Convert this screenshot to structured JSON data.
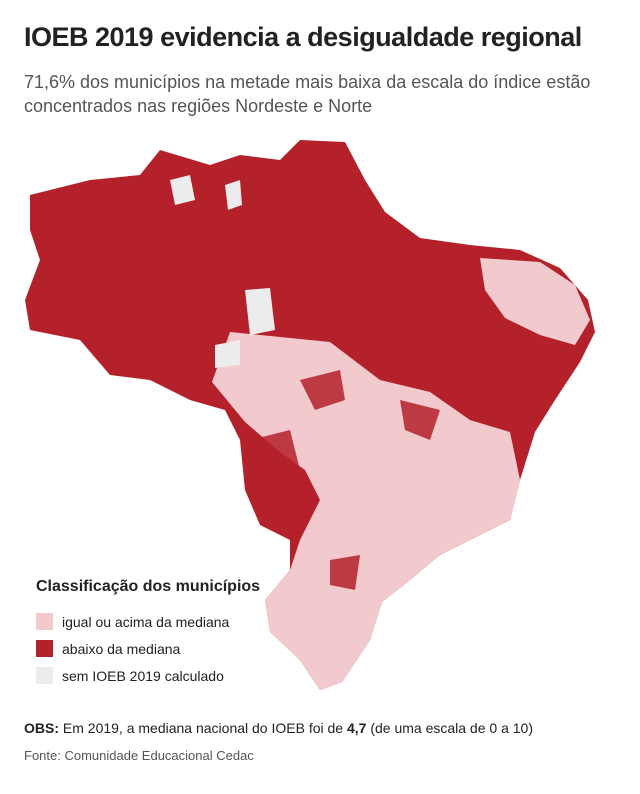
{
  "header": {
    "title": "IOEB 2019 evidencia a desigualdade regional",
    "subtitle": "71,6% dos municípios na metade mais baixa da escala do índice estão concentrados nas regiões Nordeste e Norte"
  },
  "legend": {
    "title": "Classificação dos municípios",
    "items": [
      {
        "label": "igual ou acima da mediana",
        "color": "#f2c9cc"
      },
      {
        "label": "abaixo da mediana",
        "color": "#b5212a"
      },
      {
        "label": "sem IOEB 2019 calculado",
        "color": "#ececec"
      }
    ]
  },
  "note": {
    "prefix": "OBS:",
    "text": "Em 2019, a mediana nacional do IOEB foi de",
    "value": "4,7",
    "suffix": "(de uma escala de 0 a 10)"
  },
  "source": "Fonte: Comunidade Educacional Cedac"
}
